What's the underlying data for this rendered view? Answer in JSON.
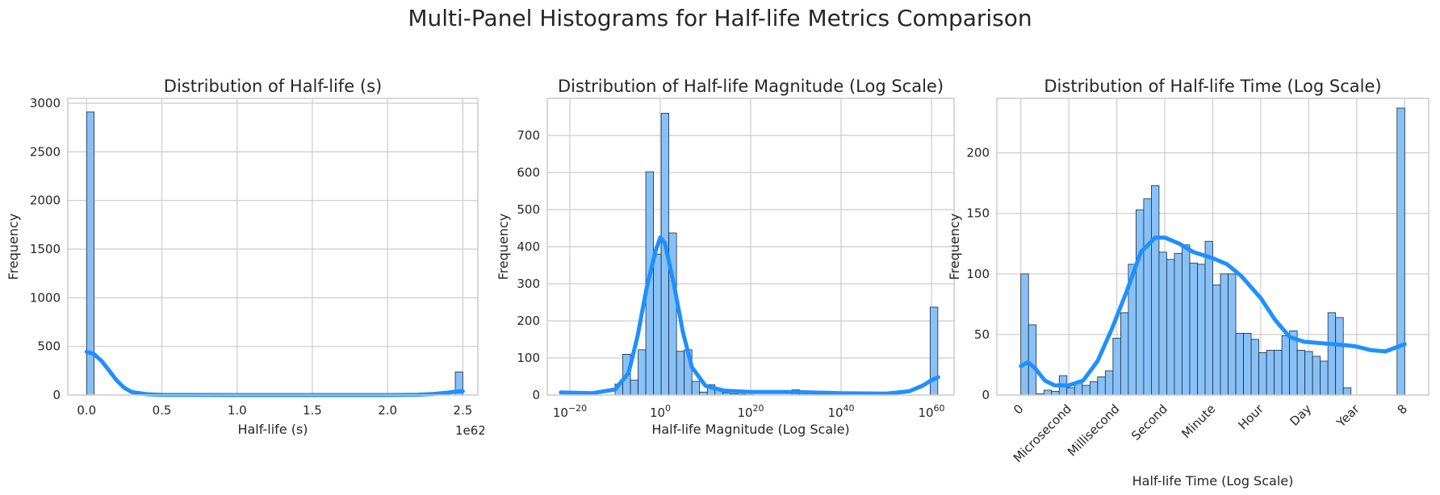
{
  "figure_title": "Multi-Panel Histograms for Half-life Metrics Comparison",
  "chart_data": [
    {
      "type": "bar",
      "title": "Distribution of Half-life (s)",
      "xlabel": "Half-life (s)",
      "ylabel": "Frequency",
      "x_offset_label": "1e62",
      "xlim": [
        -0.125,
        2.6
      ],
      "ylim": [
        0,
        3050
      ],
      "xticks": [
        0,
        0.5,
        1.0,
        1.5,
        2.0,
        2.5
      ],
      "xtick_labels": [
        "0.0",
        "0.5",
        "1.0",
        "1.5",
        "2.0",
        "2.5"
      ],
      "yticks": [
        0,
        500,
        1000,
        1500,
        2000,
        2500,
        3000
      ],
      "grid": true,
      "bins": [
        {
          "x0": 0.0,
          "x1": 0.05,
          "count": 2910
        },
        {
          "x0": 2.45,
          "x1": 2.5,
          "count": 238
        }
      ],
      "kde": {
        "x": [
          0,
          0.05,
          0.1,
          0.15,
          0.2,
          0.25,
          0.3,
          0.4,
          0.5,
          1.0,
          1.5,
          2.0,
          2.2,
          2.3,
          2.4,
          2.45,
          2.5
        ],
        "y": [
          445,
          420,
          350,
          250,
          150,
          75,
          30,
          8,
          2,
          0,
          0,
          0,
          3,
          10,
          25,
          35,
          40
        ]
      },
      "color": "#1e90ff",
      "fill": "#87c1f7"
    },
    {
      "type": "bar",
      "title": "Distribution of Half-life Magnitude (Log Scale)",
      "xlabel": "Half-life Magnitude (Log Scale)",
      "ylabel": "Frequency",
      "x_scale": "log",
      "xlim": [
        -25,
        65
      ],
      "ylim": [
        0,
        800
      ],
      "xticks": [
        -20,
        0,
        20,
        40,
        60
      ],
      "xtick_labels": [
        "10−20",
        "100",
        "1020",
        "1040",
        "1060"
      ],
      "yticks": [
        0,
        100,
        200,
        300,
        400,
        500,
        600,
        700
      ],
      "grid": true,
      "bin_start": -10,
      "bin_width": 1.7,
      "counts": [
        30,
        110,
        40,
        122,
        602,
        380,
        760,
        437,
        118,
        122,
        37,
        8,
        28,
        18,
        6,
        3,
        2,
        1,
        0,
        0,
        0,
        0,
        0,
        14,
        4,
        0,
        0,
        0,
        0,
        0,
        0,
        0,
        0,
        0,
        0,
        0,
        0,
        0,
        0,
        0,
        0,
        237
      ],
      "kde": {
        "x": [
          -22,
          -15,
          -10,
          -7,
          -5,
          -3,
          -1,
          0,
          1,
          3,
          5,
          7,
          10,
          14,
          20,
          30,
          40,
          50,
          55,
          58,
          60,
          61.5
        ],
        "y": [
          7,
          5,
          15,
          60,
          160,
          290,
          390,
          425,
          410,
          300,
          170,
          75,
          25,
          12,
          8,
          8,
          5,
          4,
          10,
          25,
          40,
          48
        ]
      },
      "color": "#1e90ff",
      "fill": "#87c1f7"
    },
    {
      "type": "bar",
      "title": "Distribution of Half-life Time (Log Scale)",
      "xlabel": "Half-life Time (Log Scale)",
      "ylabel": "Frequency",
      "xlim": [
        -0.5,
        8.5
      ],
      "ylim": [
        0,
        245
      ],
      "xticks": [
        0,
        1,
        2,
        3,
        4,
        5,
        6,
        7,
        8
      ],
      "xtick_labels": [
        "0",
        "Microsecond",
        "Millisecond",
        "Second",
        "Minute",
        "Hour",
        "Day",
        "Year",
        "8"
      ],
      "yticks": [
        0,
        50,
        100,
        150,
        200
      ],
      "grid": true,
      "bin_start": 0,
      "bin_width": 0.16,
      "counts": [
        100,
        58,
        1,
        4,
        3,
        16,
        6,
        10,
        8,
        11,
        15,
        20,
        47,
        68,
        108,
        153,
        162,
        173,
        118,
        112,
        117,
        124,
        109,
        108,
        127,
        91,
        100,
        100,
        51,
        51,
        46,
        35,
        37,
        37,
        49,
        53,
        37,
        36,
        32,
        28,
        68,
        64,
        6,
        0,
        0,
        0,
        0,
        0,
        0,
        237
      ],
      "kde": {
        "x": [
          0,
          0.15,
          0.3,
          0.5,
          0.7,
          1.0,
          1.3,
          1.6,
          1.9,
          2.2,
          2.5,
          2.8,
          3.0,
          3.3,
          3.6,
          4.0,
          4.3,
          4.6,
          5.0,
          5.3,
          5.6,
          5.9,
          6.2,
          6.5,
          6.8,
          7.0,
          7.3,
          7.6,
          7.8,
          8.0
        ],
        "y": [
          24,
          27,
          22,
          12,
          8,
          8,
          12,
          28,
          55,
          85,
          118,
          130,
          130,
          125,
          118,
          113,
          108,
          98,
          80,
          62,
          48,
          44,
          43,
          42,
          41,
          40,
          37,
          36,
          39,
          42
        ]
      },
      "color": "#1e90ff",
      "fill": "#87c1f7"
    }
  ]
}
